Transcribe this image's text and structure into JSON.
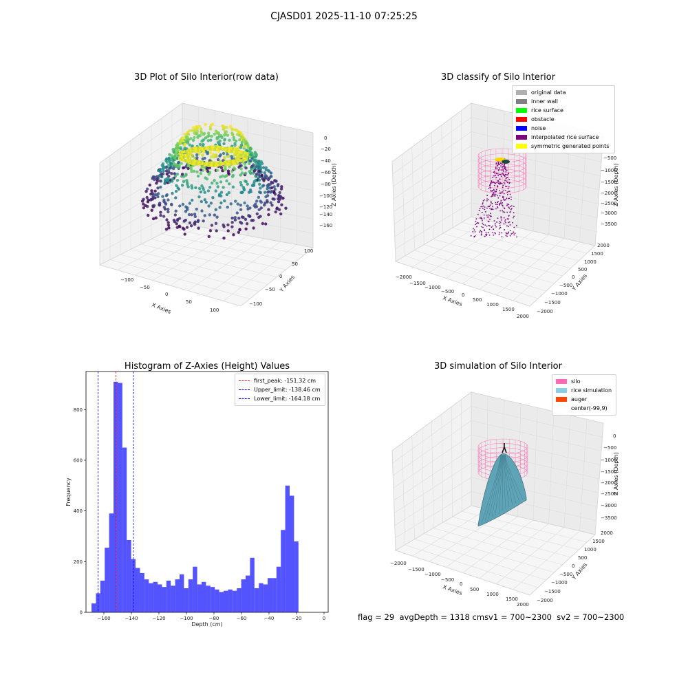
{
  "suptitle": "CJASD01 2025-11-10 07:25:25",
  "panels": {
    "raw": {
      "title": "3D Plot of Silo Interior(row data)",
      "xlabel": "X Axies",
      "ylabel": "Y Axies",
      "zlabel": "Z Axies (Depth)",
      "xticks": [
        "−100",
        "−50",
        "0",
        "50",
        "100"
      ],
      "yticks": [
        "100",
        "50",
        "0",
        "−50",
        "−100"
      ],
      "zticks": [
        "0",
        "−20",
        "−40",
        "−60",
        "−80",
        "−100",
        "−120",
        "−140",
        "−160"
      ]
    },
    "classify": {
      "title": "3D classify of Silo Interior",
      "xlabel": "X Axies",
      "ylabel": "Y Axies",
      "zlabel": "Z Axies (Depth)",
      "xticks": [
        "−2000",
        "−1500",
        "−1000",
        "−500",
        "0",
        "500",
        "1000",
        "1500",
        "2000"
      ],
      "yticks": [
        "2000",
        "1500",
        "1000",
        "500",
        "0",
        "−500",
        "−1000",
        "−1500",
        "−2000"
      ],
      "zticks": [
        "0",
        "−500",
        "−1000",
        "−1500",
        "−2000",
        "−2500",
        "−3000",
        "−3500"
      ],
      "legend": [
        {
          "label": "original data",
          "color": "#b0b0b0"
        },
        {
          "label": "inner wall",
          "color": "#808080"
        },
        {
          "label": "rice surface",
          "color": "#00ff00"
        },
        {
          "label": "obstacle",
          "color": "#ff0000"
        },
        {
          "label": "noise",
          "color": "#0000ff"
        },
        {
          "label": "interpolated rice surface",
          "color": "#800080"
        },
        {
          "label": "symmetric generated points",
          "color": "#ffff00"
        }
      ]
    },
    "histogram": {
      "title": "Histogram of Z-Axies (Height) Values",
      "xlabel": "Depth (cm)",
      "ylabel": "Frequency",
      "legend": [
        {
          "label": "first_peak: -151.32 cm",
          "color": "#ff0000"
        },
        {
          "label": "Upper_limit: -138.46 cm",
          "color": "#0000ff"
        },
        {
          "label": "Lower_limit: -164.18 cm",
          "color": "#0000ff"
        }
      ]
    },
    "simulation": {
      "title": "3D simulation of Silo Interior",
      "xlabel": "X Axies",
      "ylabel": "Y Axies",
      "zlabel": "Z Axies (Depth)",
      "xticks": [
        "−2000",
        "−1500",
        "−1000",
        "−500",
        "0",
        "500",
        "1000",
        "1500",
        "2000"
      ],
      "yticks": [
        "2000",
        "1500",
        "1000",
        "500",
        "0",
        "−500",
        "−1000",
        "−1500",
        "−2000"
      ],
      "zticks": [
        "0",
        "−500",
        "−1000",
        "−1500",
        "−2000",
        "−2500",
        "−3000",
        "−3500"
      ],
      "legend": [
        {
          "label": "silo",
          "color": "#ff69b4"
        },
        {
          "label": "rice simulation",
          "color": "#87ceeb"
        },
        {
          "label": "auger",
          "color": "#ff4500"
        },
        {
          "label": "center(-99,9)",
          "color": "#ffffff"
        }
      ]
    }
  },
  "status": {
    "flag": "flag = 29",
    "avg_depth": "avgDepth = 1318 cm",
    "sv1": "sv1 = 700~2300",
    "sv2": "sv2 = 700~2300"
  },
  "chart_data": [
    {
      "type": "histogram",
      "title": "Histogram of Z-Axies (Height) Values",
      "xlabel": "Depth (cm)",
      "ylabel": "Frequency",
      "xlim": [
        -173,
        3
      ],
      "ylim": [
        0,
        950
      ],
      "xticks": [
        -160,
        -140,
        -120,
        -100,
        -80,
        -60,
        -40,
        -20,
        0
      ],
      "yticks": [
        0,
        200,
        400,
        600,
        800
      ],
      "bin_start": -169.0,
      "bin_width": 3.2,
      "counts": [
        35,
        75,
        125,
        255,
        390,
        910,
        905,
        650,
        285,
        210,
        175,
        155,
        130,
        115,
        120,
        110,
        100,
        125,
        105,
        130,
        150,
        95,
        130,
        180,
        110,
        120,
        105,
        100,
        90,
        80,
        85,
        90,
        85,
        95,
        130,
        145,
        215,
        95,
        115,
        110,
        135,
        135,
        180,
        325,
        500,
        460,
        280
      ],
      "vlines": [
        {
          "x": -151.32,
          "color": "#ff0000",
          "label": "first_peak: -151.32 cm"
        },
        {
          "x": -138.46,
          "color": "#0000ff",
          "label": "Upper_limit: -138.46 cm"
        },
        {
          "x": -164.18,
          "color": "#0000ff",
          "label": "Lower_limit: -164.18 cm"
        }
      ],
      "bar_color": "#4a4aff",
      "legend_position": "top-right"
    }
  ]
}
